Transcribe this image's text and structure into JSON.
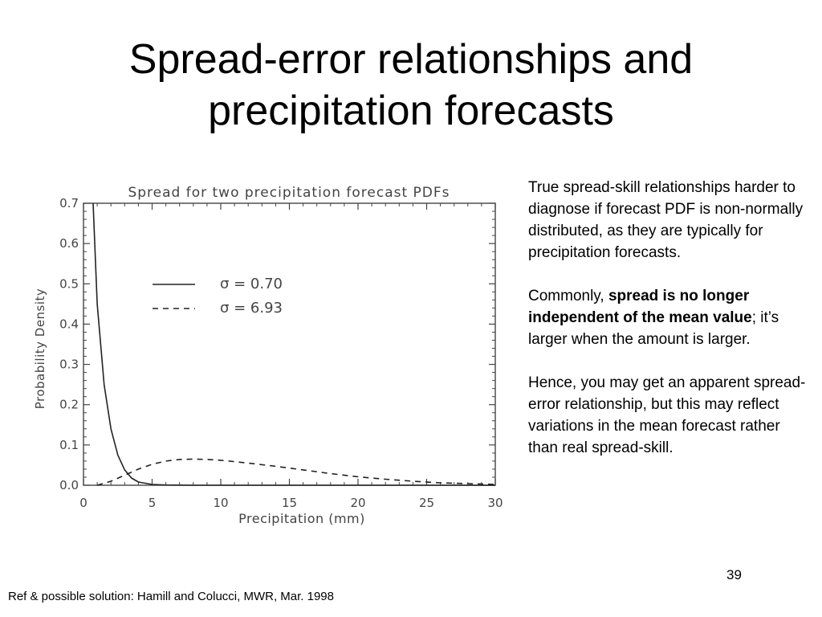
{
  "slide": {
    "title_lines": [
      "Spread-error relationships and",
      "precipitation forecasts"
    ],
    "page_number": "39",
    "footer": "Ref & possible solution: Hamill and Colucci, MWR, Mar. 1998"
  },
  "notes": {
    "para1": "True spread-skill relationships harder to diagnose if forecast PDF is non-normally distributed, as they are typically for precipitation forecasts.",
    "para2_prefix": "Commonly, ",
    "para2_bold": "spread is no longer independent of the mean value",
    "para2_suffix": "; it’s larger when the amount is larger.",
    "para3": "Hence, you may get an apparent spread-error relationship, but this may reflect variations in the mean forecast rather than real spread-skill."
  },
  "chart_data": {
    "type": "line",
    "title": "Spread for two precipitation forecast PDFs",
    "xlabel": "Precipitation (mm)",
    "ylabel": "Probability Density",
    "xlim": [
      0,
      30
    ],
    "ylim": [
      0,
      0.7
    ],
    "xticks": [
      "0",
      "5",
      "10",
      "15",
      "20",
      "25",
      "30"
    ],
    "yticks": [
      "0.0",
      "0.1",
      "0.2",
      "0.3",
      "0.4",
      "0.5",
      "0.6",
      "0.7"
    ],
    "grid": false,
    "legend_position": "upper-middle",
    "series": [
      {
        "name": "σ = 0.70",
        "style": "solid",
        "x": [
          0.7,
          1.0,
          1.5,
          2.0,
          2.5,
          3.0,
          3.5,
          4.0,
          5.0,
          6.0,
          8.0,
          10.0,
          15.0,
          20.0,
          30.0
        ],
        "y": [
          0.7,
          0.45,
          0.25,
          0.14,
          0.075,
          0.038,
          0.018,
          0.008,
          0.002,
          0.0005,
          0.0,
          0.0,
          0.0,
          0.0,
          0.0
        ]
      },
      {
        "name": "σ = 6.93",
        "style": "dashed",
        "x": [
          1.0,
          2.0,
          3.0,
          4.0,
          5.0,
          6.0,
          7.0,
          8.0,
          9.0,
          10.0,
          12.0,
          14.0,
          16.0,
          18.0,
          20.0,
          22.0,
          24.0,
          26.0,
          28.0,
          30.0
        ],
        "y": [
          0.0,
          0.01,
          0.025,
          0.04,
          0.052,
          0.06,
          0.064,
          0.065,
          0.064,
          0.062,
          0.055,
          0.047,
          0.038,
          0.029,
          0.021,
          0.015,
          0.01,
          0.006,
          0.004,
          0.002
        ]
      }
    ]
  }
}
